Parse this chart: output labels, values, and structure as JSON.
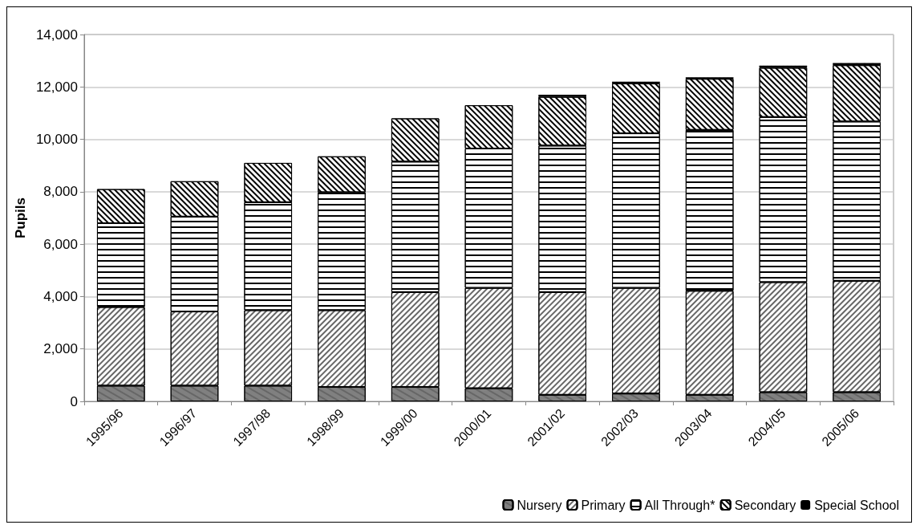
{
  "chart_data": {
    "type": "bar",
    "stacked": true,
    "ylabel": "Pupils",
    "categories": [
      "1995/96",
      "1996/97",
      "1997/98",
      "1998/99",
      "1999/00",
      "2000/01",
      "2001/02",
      "2002/03",
      "2003/04",
      "2004/05",
      "2005/06"
    ],
    "series": [
      {
        "name": "Nursery",
        "color": "#808080",
        "values": [
          600,
          600,
          600,
          550,
          550,
          500,
          250,
          300,
          250,
          350,
          350
        ]
      },
      {
        "name": "Primary",
        "color": "#ffffff",
        "values": [
          3000,
          2830,
          2880,
          2930,
          3620,
          3830,
          3920,
          4030,
          3970,
          4200,
          4250
        ]
      },
      {
        "name": "All Through*",
        "color": "#ffffff",
        "values": [
          3200,
          3620,
          4120,
          4500,
          4980,
          5320,
          5590,
          5900,
          6140,
          6300,
          6080
        ]
      },
      {
        "name": "Secondary",
        "color": "#ffffff",
        "values": [
          1300,
          1350,
          1500,
          1370,
          1650,
          1650,
          1860,
          1900,
          1950,
          1880,
          2150
        ]
      },
      {
        "name": "Special School",
        "color": "#000000",
        "values": [
          0,
          0,
          0,
          0,
          0,
          0,
          80,
          70,
          60,
          80,
          80
        ]
      }
    ],
    "ylim": [
      0,
      14000
    ],
    "yticks": [
      0,
      {
        "value": 2000,
        "label": "2,000"
      },
      {
        "value": 4000,
        "label": "4,000"
      },
      {
        "value": 6000,
        "label": "6,000"
      },
      {
        "value": 8000,
        "label": "8,000"
      },
      {
        "value": 10000,
        "label": "10,000"
      },
      {
        "value": 12000,
        "label": "12,000"
      },
      {
        "value": 14000,
        "label": "14,000"
      }
    ],
    "grid": "y",
    "legend": "bottom right"
  }
}
